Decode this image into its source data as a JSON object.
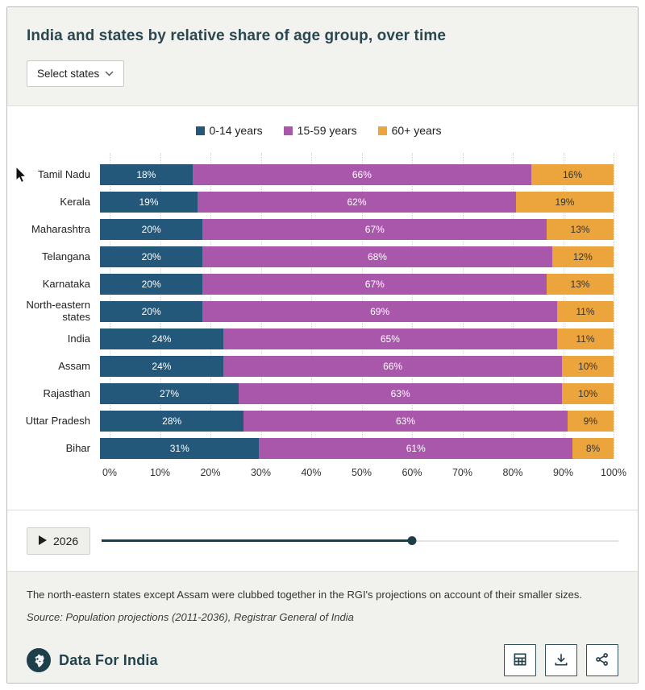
{
  "header": {
    "title": "India and states by relative share of age group, over time",
    "select_states_label": "Select states"
  },
  "chart_data": {
    "type": "bar",
    "stacked": true,
    "orientation": "horizontal",
    "categories": [
      "Tamil Nadu",
      "Kerala",
      "Maharashtra",
      "Telangana",
      "Karnataka",
      "North-eastern states",
      "India",
      "Assam",
      "Rajasthan",
      "Uttar Pradesh",
      "Bihar"
    ],
    "series": [
      {
        "name": "0-14 years",
        "color": "#24587a",
        "label_color": "#ffffff",
        "values": [
          18,
          19,
          20,
          20,
          20,
          20,
          24,
          24,
          27,
          28,
          31
        ]
      },
      {
        "name": "15-59 years",
        "color": "#a957ab",
        "label_color": "#ffffff",
        "values": [
          66,
          62,
          67,
          68,
          67,
          69,
          65,
          66,
          63,
          63,
          61
        ]
      },
      {
        "name": "60+ years",
        "color": "#eca53d",
        "label_color": "#333333",
        "values": [
          16,
          19,
          13,
          12,
          13,
          11,
          11,
          10,
          10,
          9,
          8
        ]
      }
    ],
    "x_ticks": [
      "0%",
      "10%",
      "20%",
      "30%",
      "40%",
      "50%",
      "60%",
      "70%",
      "80%",
      "90%",
      "100%"
    ],
    "xlim": [
      0,
      100
    ],
    "grid": "vertical-dotted",
    "legend_position": "top-center",
    "value_suffix": "%"
  },
  "slider": {
    "year_label": "2026",
    "position_pct": 60
  },
  "footer": {
    "note": "The north-eastern states except Assam were clubbed together in the RGI's projections on account of their smaller sizes.",
    "source": "Source: Population projections (2011-2036), Registrar General of India"
  },
  "branding": {
    "name": "Data For India",
    "logo_color": "#1d3f49"
  },
  "actions": {
    "table_label": "table-view",
    "download_label": "download",
    "share_label": "share"
  },
  "colors": {
    "header_bg": "#f2f2ef",
    "footer_bg": "#f1f1ee",
    "accent_teal": "#24434d",
    "slider_dark": "#1e3d46"
  }
}
